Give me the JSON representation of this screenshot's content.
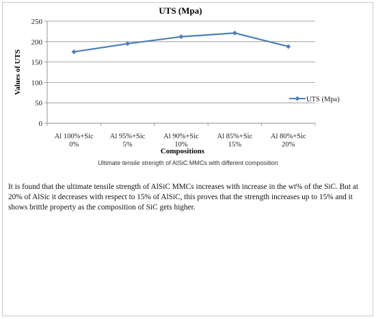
{
  "chart_data": {
    "type": "line",
    "title": "UTS (Mpa)",
    "xlabel": "Compositions",
    "ylabel": "Values of UTS",
    "categories": [
      "Al 100%+Sic 0%",
      "Al 95%+Sic 5%",
      "Al 90%+Sic 10%",
      "Al 85%+Sic 15%",
      "Al 80%+Sic 20%"
    ],
    "category_lines": [
      [
        "Al 100%+Sic",
        "0%"
      ],
      [
        "Al 95%+Sic",
        "5%"
      ],
      [
        "Al 90%+Sic",
        "10%"
      ],
      [
        "Al 85%+Sic",
        "15%"
      ],
      [
        "Al 80%+Sic",
        "20%"
      ]
    ],
    "series": [
      {
        "name": "UTS (Mpa)",
        "values": [
          175,
          195,
          212,
          221,
          188
        ],
        "color": "#4a7ebb"
      }
    ],
    "ylim": [
      0,
      250
    ],
    "yticks": [
      0,
      50,
      100,
      150,
      200,
      250
    ],
    "grid": true,
    "legend": "right"
  },
  "caption": "Ultimate tensile strength of  AlSiC  MMCs with different composition",
  "paragraph": "It is found that the ultimate tensile strength of AlSiC MMCs increases with increase in the wt% of the SiC. But at 20% of AlSic it decreases with respect to 15% of AlSiC, this proves that the strength increases up to 15% and it shows brittle property as the composition of SiC gets higher."
}
